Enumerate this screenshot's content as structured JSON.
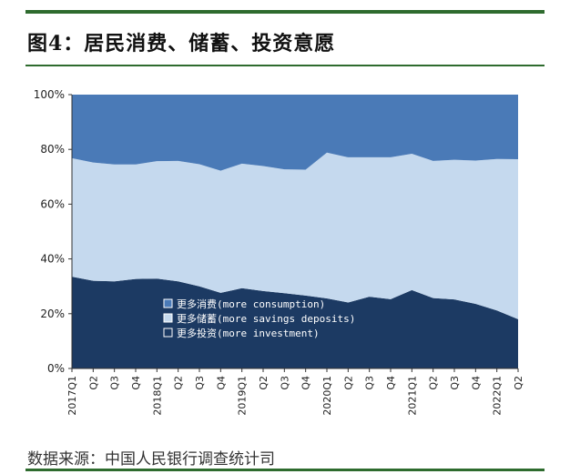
{
  "header": {
    "title": "图4：居民消费、储蓄、投资意愿"
  },
  "footer": {
    "source": "数据来源：中国人民银行调查统计司"
  },
  "colors": {
    "rule": "#2e6b2e",
    "consumption": "#4a7ab7",
    "savings": "#c5d9ee",
    "investment": "#1c3a63"
  },
  "chart_data": {
    "type": "area",
    "stacked": true,
    "percent": true,
    "categories": [
      "2017Q1",
      "Q2",
      "Q3",
      "Q4",
      "2018Q1",
      "Q2",
      "Q3",
      "Q4",
      "2019Q1",
      "Q2",
      "Q3",
      "Q4",
      "2020Q1",
      "Q2",
      "Q3",
      "Q4",
      "2021Q1",
      "Q2",
      "Q3",
      "Q4",
      "2022Q1",
      "Q2"
    ],
    "yticks": [
      "0%",
      "20%",
      "40%",
      "60%",
      "80%",
      "100%"
    ],
    "ylim": [
      0,
      100
    ],
    "series": [
      {
        "name": "更多投资(more investment)",
        "values": [
          33.5,
          32.0,
          31.8,
          32.7,
          32.8,
          31.8,
          30.0,
          27.6,
          29.3,
          28.3,
          27.5,
          26.6,
          25.6,
          24.1,
          26.2,
          25.3,
          28.6,
          25.7,
          25.2,
          23.6,
          21.2,
          18.0
        ]
      },
      {
        "name": "更多储蓄(more savings deposits)",
        "values": [
          43.3,
          43.2,
          42.7,
          41.8,
          42.9,
          44.0,
          44.6,
          44.6,
          45.5,
          45.6,
          45.2,
          46.0,
          53.2,
          53.0,
          50.9,
          51.8,
          49.8,
          50.1,
          51.0,
          52.3,
          55.3,
          58.4
        ]
      },
      {
        "name": "更多消费(more consumption)",
        "values": [
          23.2,
          24.8,
          25.5,
          25.5,
          24.3,
          24.2,
          25.4,
          27.8,
          25.2,
          26.1,
          27.3,
          27.4,
          21.2,
          22.9,
          22.9,
          22.9,
          21.6,
          24.2,
          23.8,
          24.1,
          23.5,
          23.6
        ]
      }
    ],
    "legend_placement": "bottom-center"
  }
}
